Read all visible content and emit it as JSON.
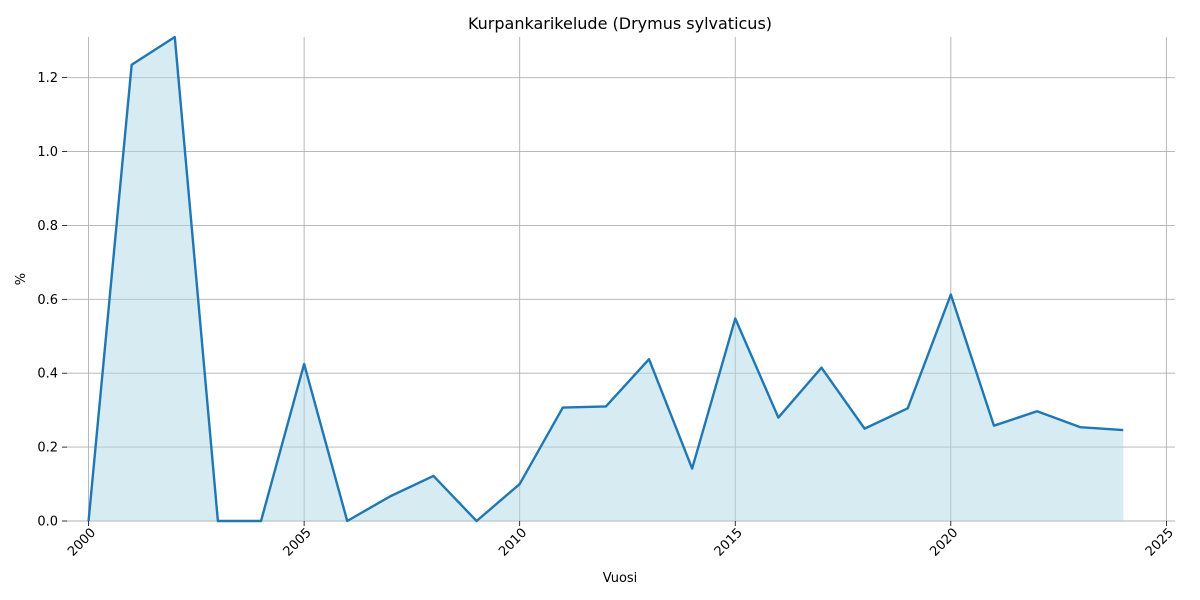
{
  "chart_data": {
    "type": "area",
    "title": "Kurpankarikelude (Drymus sylvaticus)",
    "xlabel": "Vuosi",
    "ylabel": "%",
    "xlim": [
      1999.5,
      2025.2
    ],
    "ylim": [
      0,
      1.31
    ],
    "grid": true,
    "xticks": [
      2000,
      2005,
      2010,
      2015,
      2020,
      2025
    ],
    "yticks": [
      "0.0",
      "0.2",
      "0.4",
      "0.6",
      "0.8",
      "1.0",
      "1.2"
    ],
    "x": [
      2000,
      2001,
      2002,
      2003,
      2004,
      2005,
      2006,
      2007,
      2008,
      2009,
      2010,
      2011,
      2012,
      2013,
      2014,
      2015,
      2016,
      2017,
      2018,
      2019,
      2020,
      2021,
      2022,
      2023,
      2024
    ],
    "series": [
      {
        "values": [
          0.0,
          1.235,
          1.31,
          0.0,
          0.0,
          0.425,
          0.0,
          0.067,
          0.122,
          0.0,
          0.1,
          0.307,
          0.31,
          0.438,
          0.142,
          0.548,
          0.28,
          0.415,
          0.25,
          0.305,
          0.613,
          0.258,
          0.297,
          0.254,
          0.246
        ],
        "line_color": "#1f77b4",
        "fill_color": "#add8e6"
      }
    ]
  }
}
